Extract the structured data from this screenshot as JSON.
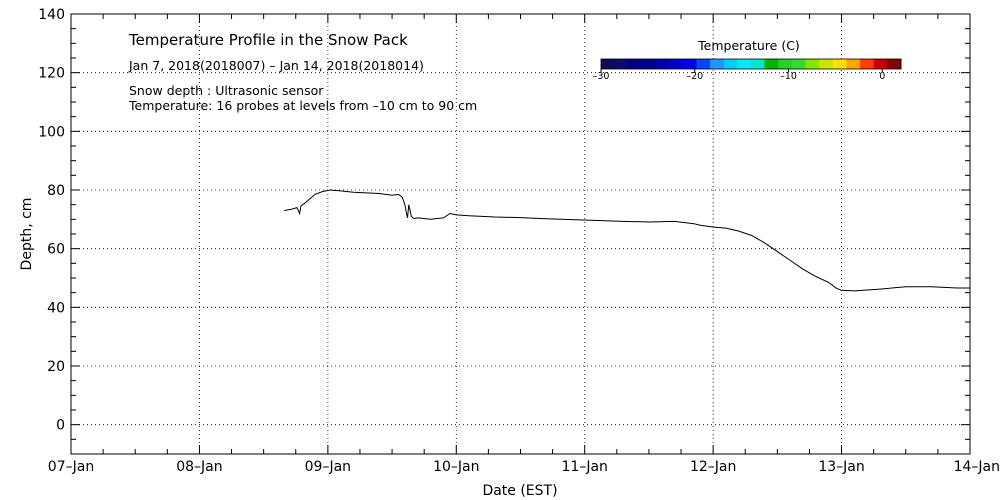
{
  "chart_data": {
    "type": "line",
    "title": "Temperature Profile in the Snow Pack",
    "subtitle": "Jan  7, 2018(2018007) – Jan 14, 2018(2018014)",
    "notes": [
      "Snow depth : Ultrasonic sensor",
      "Temperature: 16 probes at levels from –10 cm to 90 cm"
    ],
    "xlabel": "Date (EST)",
    "ylabel": "Depth, cm",
    "xlim": [
      0,
      7
    ],
    "ylim": [
      -10,
      140
    ],
    "x_ticks": [
      0,
      1,
      2,
      3,
      4,
      5,
      6,
      7
    ],
    "x_tick_labels": [
      "07–Jan",
      "08–Jan",
      "09–Jan",
      "10–Jan",
      "11–Jan",
      "12–Jan",
      "13–Jan",
      "14–Jan"
    ],
    "y_ticks": [
      0,
      20,
      40,
      60,
      80,
      100,
      120,
      140
    ],
    "y_tick_labels": [
      "0",
      "20",
      "40",
      "60",
      "80",
      "100",
      "120",
      "140"
    ],
    "grid": true,
    "series": [
      {
        "name": "Snow depth",
        "color": "#000000",
        "x": [
          1.66,
          1.72,
          1.76,
          1.78,
          1.79,
          1.82,
          1.86,
          1.9,
          1.96,
          2.02,
          2.1,
          2.2,
          2.3,
          2.4,
          2.5,
          2.55,
          2.58,
          2.6,
          2.61,
          2.62,
          2.63,
          2.65,
          2.67,
          2.7,
          2.8,
          2.9,
          2.95,
          3.0,
          3.1,
          3.3,
          3.5,
          3.7,
          3.9,
          4.1,
          4.3,
          4.5,
          4.7,
          4.85,
          4.9,
          5.0,
          5.1,
          5.2,
          5.3,
          5.4,
          5.5,
          5.6,
          5.7,
          5.8,
          5.9,
          5.96,
          6.0,
          6.1,
          6.3,
          6.5,
          6.7,
          6.9,
          7.0
        ],
        "y": [
          73,
          73.5,
          74,
          72,
          74.5,
          75.5,
          77,
          78.5,
          79.5,
          80,
          79.7,
          79.2,
          79,
          78.8,
          78.2,
          78.5,
          77.5,
          75,
          72.5,
          70.5,
          75,
          71,
          70.3,
          70.5,
          70,
          70.5,
          72,
          71.5,
          71.2,
          70.8,
          70.6,
          70.2,
          69.9,
          69.6,
          69.3,
          69.1,
          69.3,
          68.5,
          68,
          67.4,
          67,
          66,
          64.5,
          62,
          59,
          56,
          53,
          50.5,
          48.5,
          46.5,
          45.8,
          45.6,
          46.2,
          47,
          47,
          46.6,
          46.6
        ]
      }
    ],
    "colorbar": {
      "label": "Temperature (C)",
      "ticks": [
        -30,
        -20,
        -10,
        0
      ],
      "tick_labels": [
        "–30",
        "–20",
        "–10",
        "0"
      ],
      "range": [
        -30,
        2
      ],
      "colors": [
        "#0b0b5a",
        "#0b0b6e",
        "#000080",
        "#00008b",
        "#0000aa",
        "#0000c8",
        "#0000e6",
        "#0a46ff",
        "#1e96ff",
        "#00ccff",
        "#00eaff",
        "#00e6cc",
        "#00b400",
        "#2ccc2c",
        "#30dc30",
        "#84e600",
        "#c8e600",
        "#ffe000",
        "#ffa500",
        "#ff3c00",
        "#c80000",
        "#8b0000"
      ]
    }
  }
}
